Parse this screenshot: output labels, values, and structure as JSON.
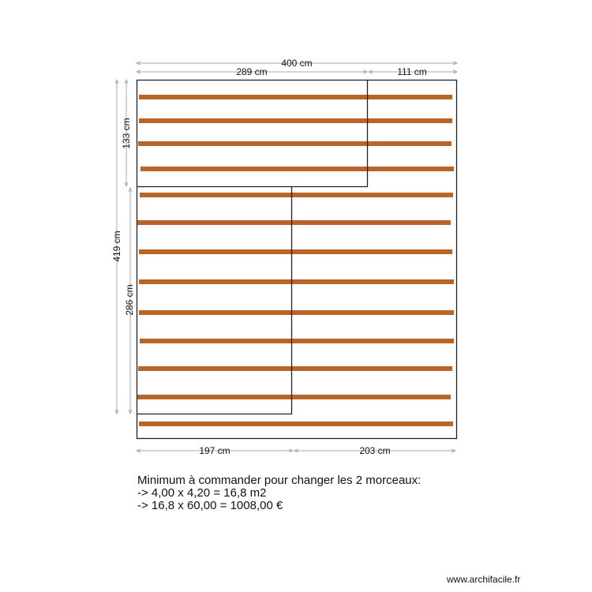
{
  "colors": {
    "plank": "#b8652a",
    "wall": "#222222",
    "dimension": "#aaaaaa"
  },
  "dimensions": {
    "top_total": "400 cm",
    "top_left": "289 cm",
    "top_right": "111 cm",
    "left_total": "419 cm",
    "left_upper": "133 cm",
    "left_lower": "286 cm",
    "bottom_left": "197 cm",
    "bottom_right": "203 cm"
  },
  "note": {
    "line1": "Minimum à commander pour changer les 2 morceaux:",
    "line2": "-> 4,00 x 4,20 = 16,8 m2",
    "line3": "-> 16,8 x 60,00 = 1008,00 €"
  },
  "watermark": "www.archifacile.fr"
}
